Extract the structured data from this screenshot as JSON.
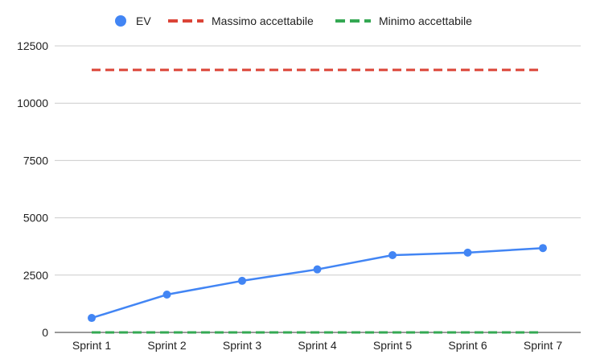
{
  "chart_data": {
    "type": "line",
    "categories": [
      "Sprint 1",
      "Sprint 2",
      "Sprint 3",
      "Sprint 4",
      "Sprint 5",
      "Sprint 6",
      "Sprint 7"
    ],
    "series": [
      {
        "name": "EV",
        "values": [
          630,
          1650,
          2250,
          2750,
          3370,
          3480,
          3680
        ],
        "color": "#4285f4",
        "style": "solid-with-markers"
      },
      {
        "name": "Massimo accettabile",
        "values": [
          11450,
          11450,
          11450,
          11450,
          11450,
          11450,
          11450
        ],
        "color": "#db4437",
        "style": "dashed"
      },
      {
        "name": "Minimo accettabile",
        "values": [
          0,
          0,
          0,
          0,
          0,
          0,
          0
        ],
        "color": "#34a853",
        "style": "dashed"
      }
    ],
    "y_ticks": [
      "0",
      "2500",
      "5000",
      "7500",
      "10000",
      "12500"
    ],
    "ylim": [
      0,
      12500
    ],
    "grid": true,
    "legend_position": "top-center"
  }
}
